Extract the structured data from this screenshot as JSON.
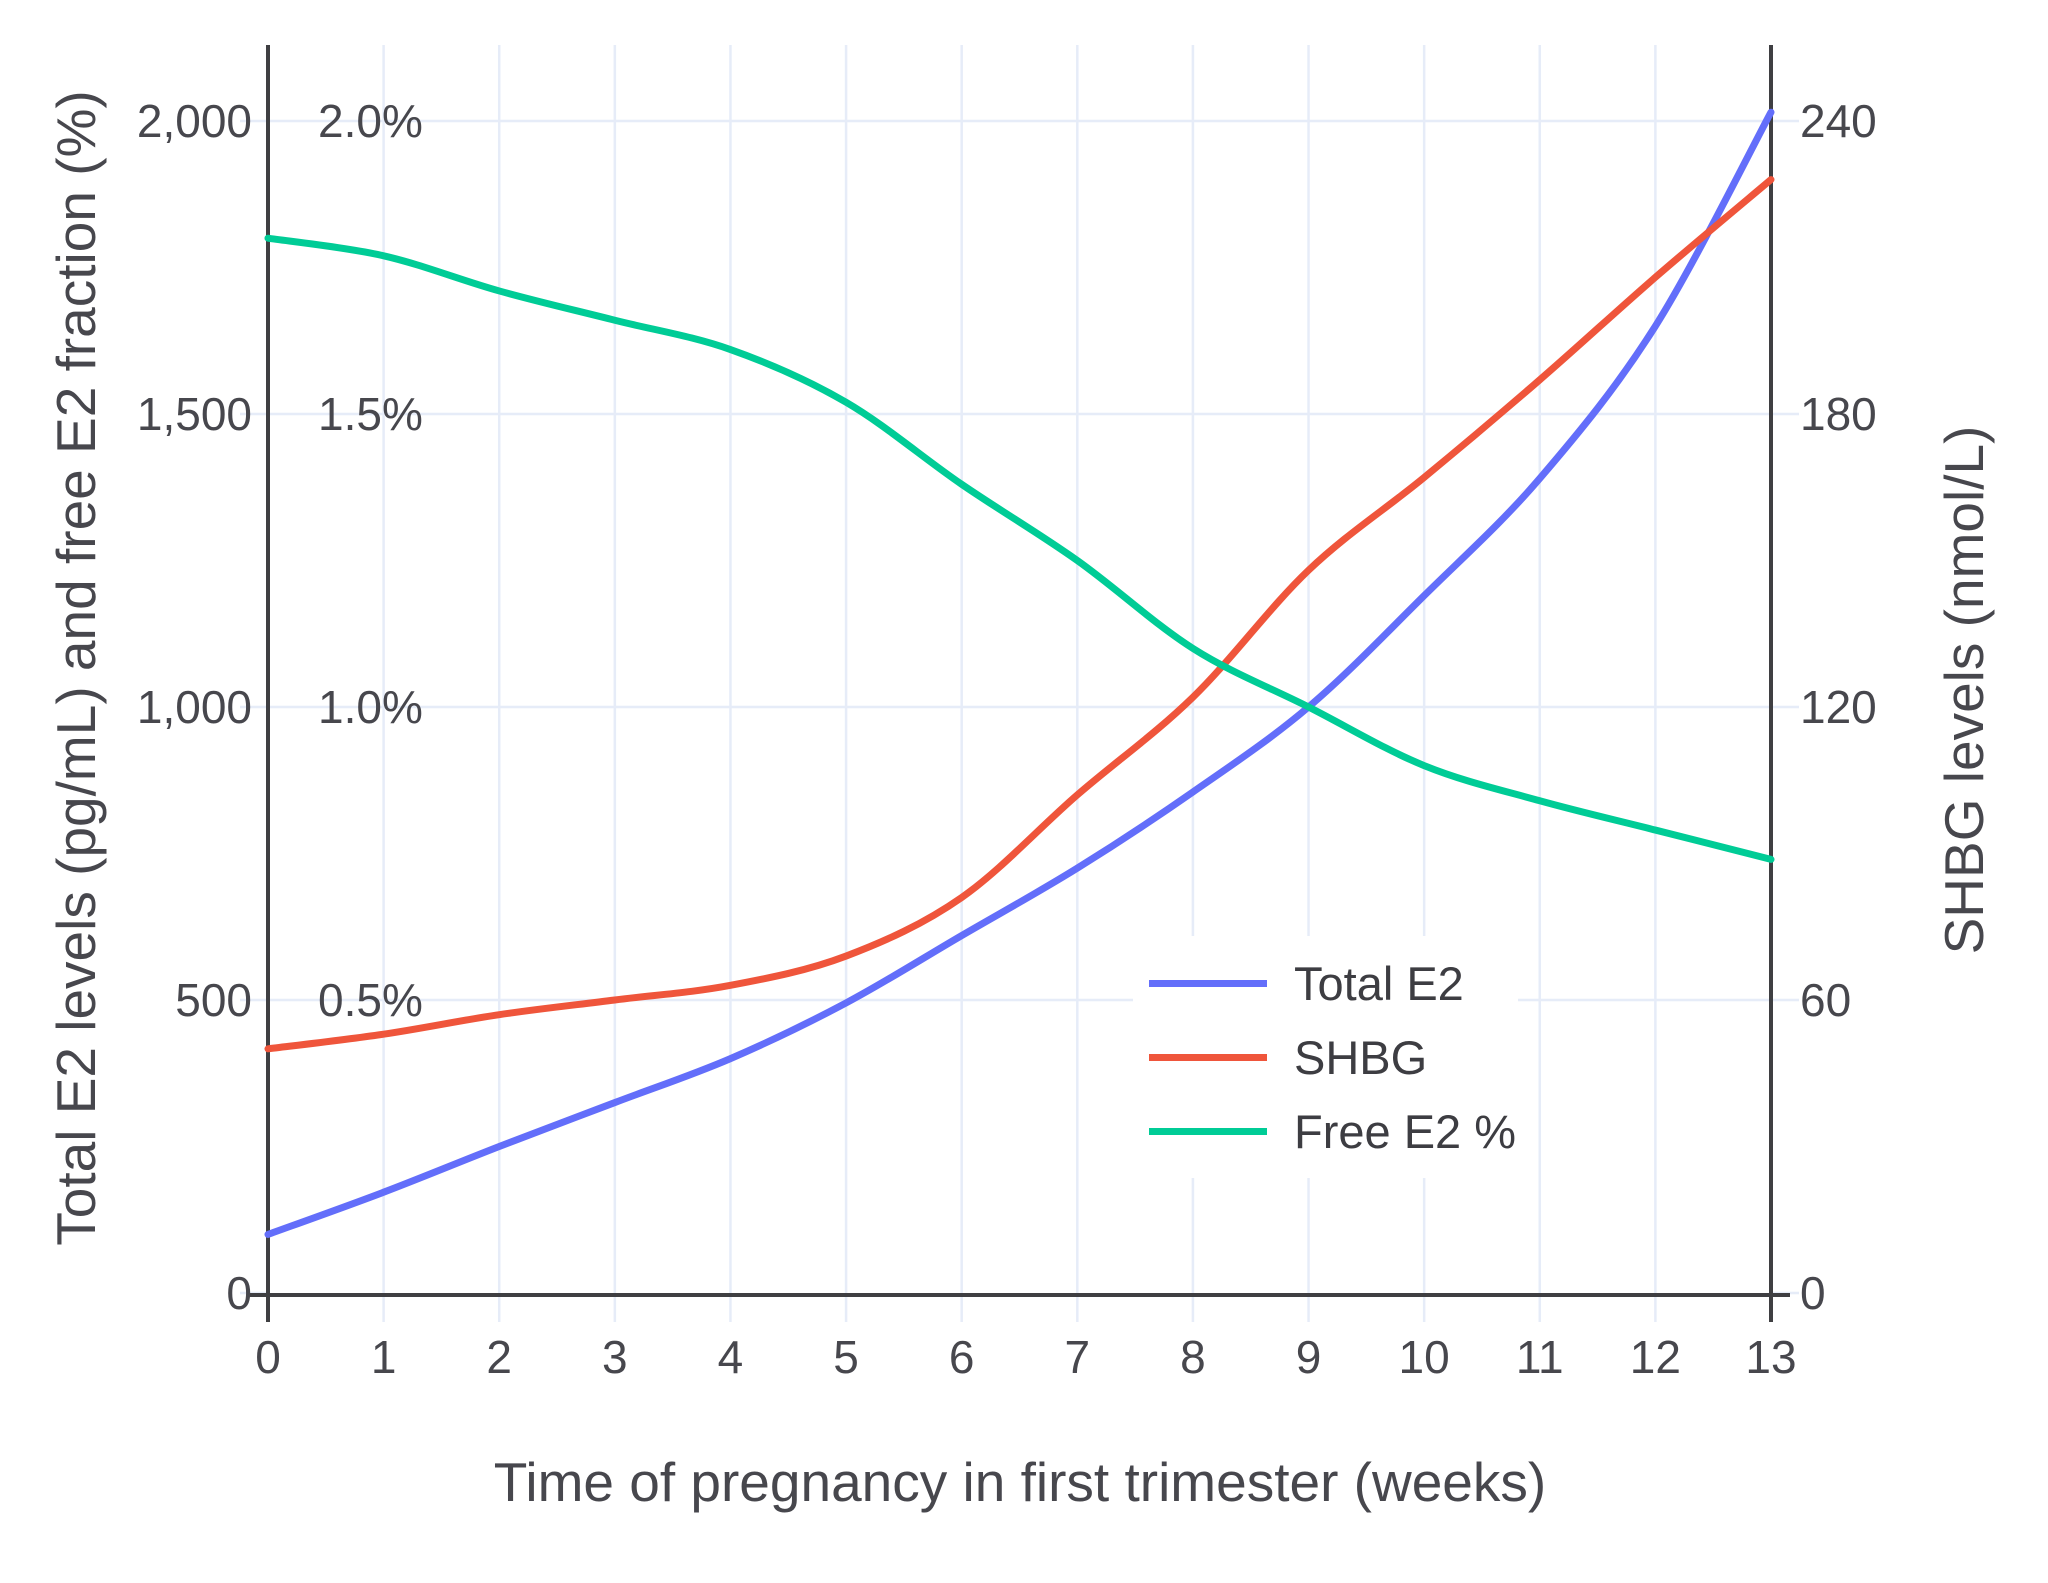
{
  "chart_data": {
    "type": "line",
    "title": "",
    "xlabel": "Time of pregnancy in first trimester (weeks)",
    "ylabel_left": "Total E2 levels (pg/mL) and free E2 fraction (%)",
    "ylabel_right": "SHBG levels (nmol/L)",
    "x": [
      0,
      1,
      2,
      3,
      4,
      5,
      6,
      7,
      8,
      9,
      10,
      11,
      12,
      13
    ],
    "x_tick_labels": [
      "0",
      "1",
      "2",
      "3",
      "4",
      "5",
      "6",
      "7",
      "8",
      "9",
      "10",
      "11",
      "12",
      "13"
    ],
    "left_axis": {
      "range": [
        0,
        2133
      ],
      "ticks": [
        {
          "value": 0,
          "label": "0"
        },
        {
          "value": 500,
          "label": "500"
        },
        {
          "value": 1000,
          "label": "1,000"
        },
        {
          "value": 1500,
          "label": "1,500"
        },
        {
          "value": 2000,
          "label": "2,000"
        }
      ]
    },
    "right_axis": {
      "range": [
        0,
        256
      ],
      "ticks": [
        {
          "value": 0,
          "label": "0"
        },
        {
          "value": 60,
          "label": "60"
        },
        {
          "value": 120,
          "label": "120"
        },
        {
          "value": 180,
          "label": "180"
        },
        {
          "value": 240,
          "label": "240"
        }
      ]
    },
    "pct_annotations": [
      {
        "label": "0.5%",
        "left_axis_value": 500
      },
      {
        "label": "1.0%",
        "left_axis_value": 1000
      },
      {
        "label": "1.5%",
        "left_axis_value": 1500
      },
      {
        "label": "2.0%",
        "left_axis_value": 2000
      }
    ],
    "series": [
      {
        "name": "Total E2",
        "axis": "left",
        "unit": "pg/mL",
        "color": "#636EFA",
        "values": [
          100,
          172,
          250,
          325,
          400,
          495,
          610,
          725,
          855,
          1000,
          1190,
          1390,
          1650,
          2015
        ]
      },
      {
        "name": "SHBG",
        "axis": "right",
        "unit": "nmol/L",
        "color": "#EF553B",
        "values": [
          50,
          53,
          57,
          60,
          63,
          69,
          81,
          102,
          122,
          148,
          167,
          187,
          208,
          228
        ]
      },
      {
        "name": "Free E2 %",
        "axis": "left_pct",
        "unit": "%",
        "color": "#00CC96",
        "values": [
          1.8,
          1.77,
          1.71,
          1.66,
          1.61,
          1.52,
          1.38,
          1.25,
          1.1,
          1.0,
          0.9,
          0.84,
          0.79,
          0.74
        ]
      }
    ],
    "legend": {
      "position": "middle-right",
      "entries": [
        "Total E2",
        "SHBG",
        "Free E2 %"
      ]
    },
    "grid": "on"
  },
  "colors": {
    "grid": "#E6ECF8",
    "axis_line": "#3f3f42",
    "text": "#47474d",
    "background": "#ffffff"
  }
}
